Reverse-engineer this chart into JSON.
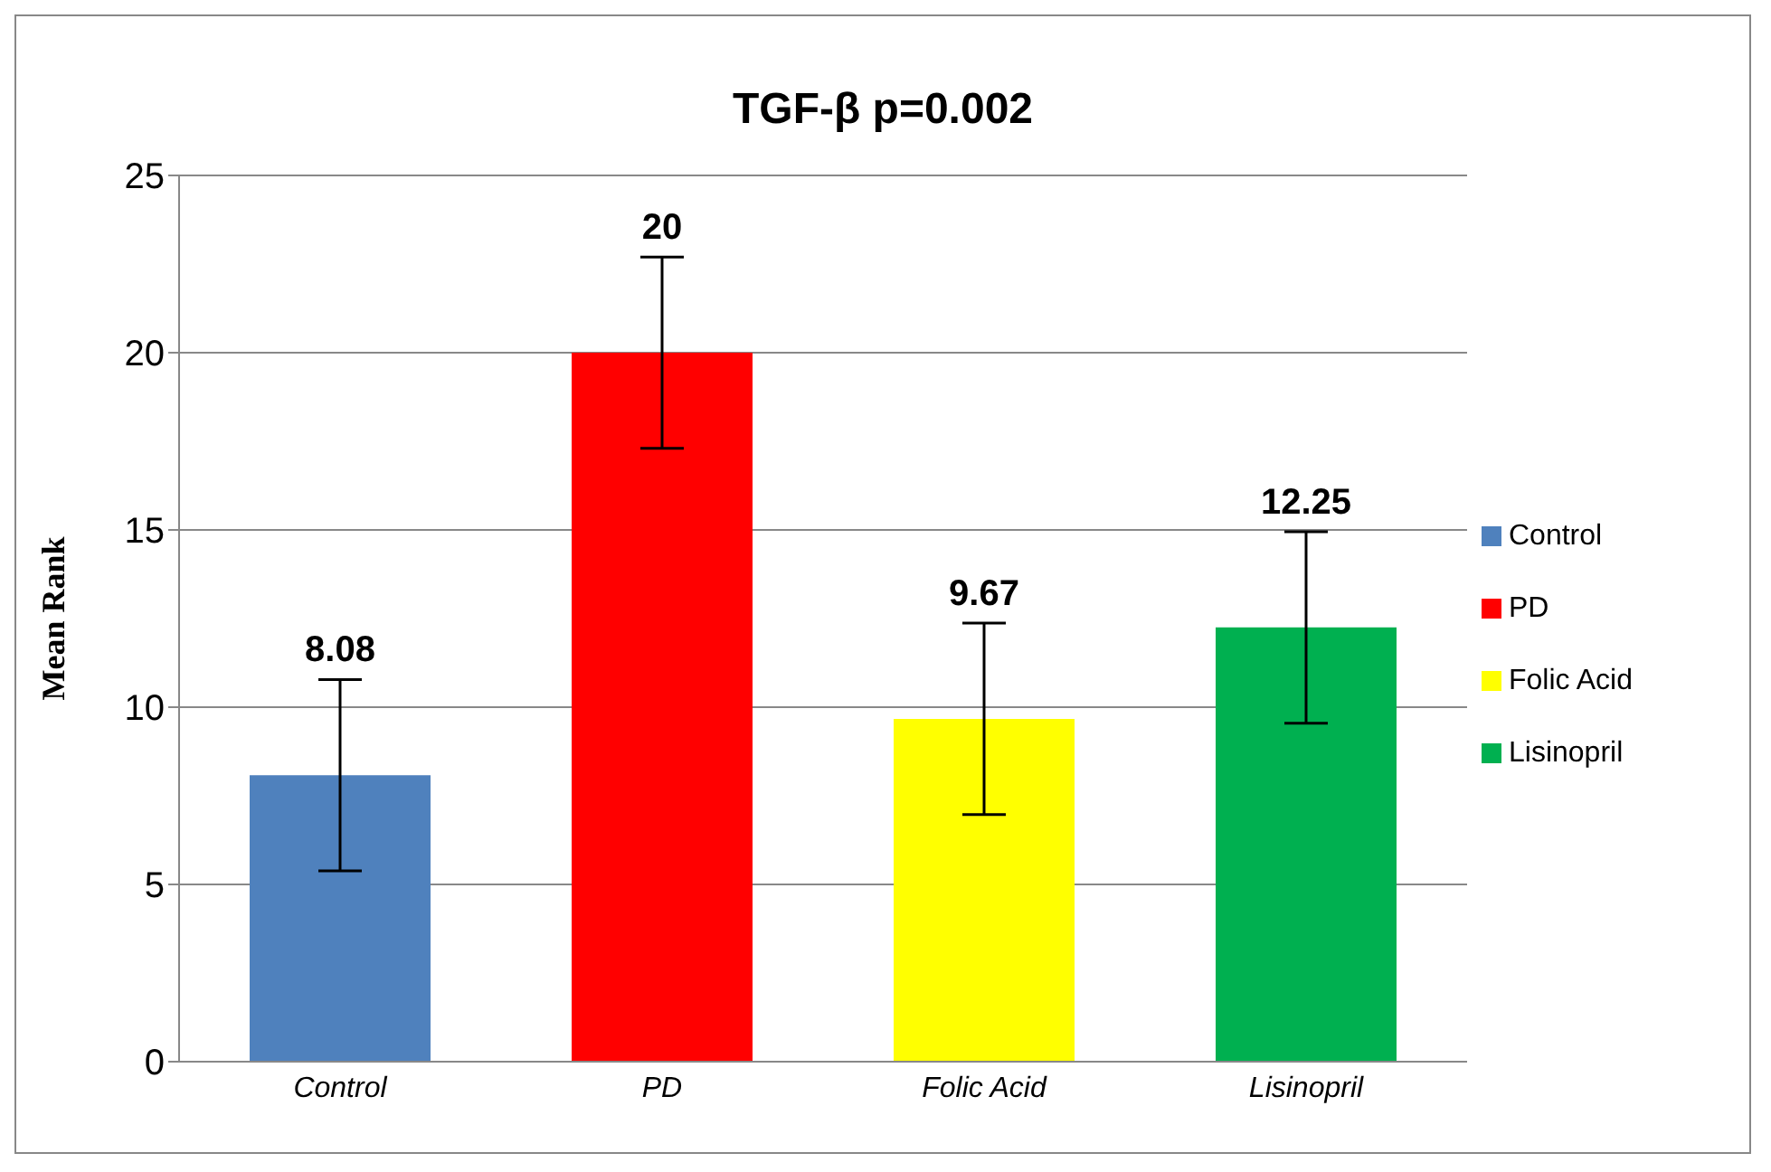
{
  "chart_data": {
    "type": "bar",
    "title": "TGF-β p=0.002",
    "ylabel": "Mean Rank",
    "categories": [
      "Control",
      "PD",
      "Folic Acid",
      "Lisinopril"
    ],
    "stacked": true,
    "series": [
      {
        "name": "Control",
        "color": "#4f81bd",
        "values": [
          8.08,
          null,
          null,
          null
        ],
        "errors": [
          2.7,
          null,
          null,
          null
        ]
      },
      {
        "name": "PD",
        "color": "#ff0000",
        "values": [
          null,
          20,
          null,
          null
        ],
        "errors": [
          null,
          2.7,
          null,
          null
        ]
      },
      {
        "name": "Folic Acid",
        "color": "#ffff00",
        "values": [
          null,
          null,
          9.67,
          null
        ],
        "errors": [
          null,
          null,
          2.7,
          null
        ]
      },
      {
        "name": "Lisinopril",
        "color": "#00b050",
        "values": [
          null,
          null,
          null,
          12.25
        ],
        "errors": [
          null,
          null,
          null,
          2.7
        ]
      }
    ],
    "data_labels": true,
    "ylim": [
      0,
      25
    ],
    "yticks": [
      0,
      5,
      10,
      15,
      20,
      25
    ],
    "grid": "y",
    "legend": "right"
  }
}
